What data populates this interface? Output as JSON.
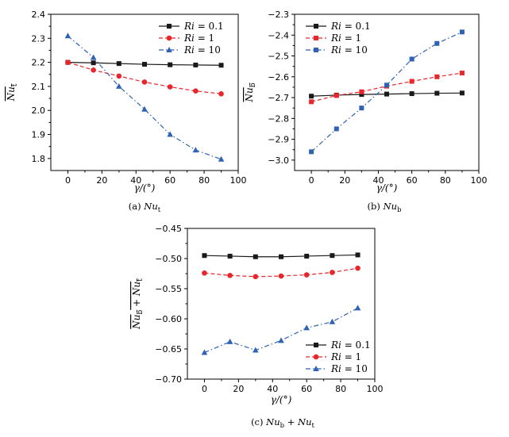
{
  "colors": {
    "black": "#1a1a1a",
    "red": "#e8262b",
    "blue": "#2f62b5"
  },
  "chart_data": [
    {
      "type": "line",
      "caption": "(a) Nu_t",
      "caption_base": "Nu",
      "caption_sub": "t",
      "caption_prefix": "(a) ",
      "xlabel": "γ/(°)",
      "ylabel": "Nu_t (overline)",
      "xlim": [
        -10,
        100
      ],
      "ylim": [
        1.75,
        2.4
      ],
      "xticks": [
        0,
        20,
        40,
        60,
        80,
        100
      ],
      "yticks": [
        1.8,
        1.9,
        2.0,
        2.1,
        2.2,
        2.3,
        2.4
      ],
      "x": [
        0,
        15,
        30,
        45,
        60,
        75,
        90
      ],
      "legend_position": "top-right",
      "series": [
        {
          "name": "Ri = 0.1",
          "color": "#1a1a1a",
          "marker": "square",
          "dash": "solid",
          "values": [
            2.2,
            2.198,
            2.195,
            2.192,
            2.19,
            2.189,
            2.188
          ]
        },
        {
          "name": "Ri = 1",
          "color": "#e8262b",
          "marker": "circle",
          "dash": "dashed",
          "values": [
            2.2,
            2.168,
            2.143,
            2.118,
            2.098,
            2.081,
            2.069
          ]
        },
        {
          "name": "Ri = 10",
          "color": "#2f62b5",
          "marker": "triangle",
          "dash": "dashdot",
          "values": [
            2.31,
            2.22,
            2.1,
            2.005,
            1.9,
            1.835,
            1.797
          ]
        }
      ]
    },
    {
      "type": "line",
      "caption": "(b) Nu_b",
      "caption_base": "Nu",
      "caption_sub": "b",
      "caption_prefix": "(b) ",
      "xlabel": "γ/(°)",
      "ylabel": "Nu_b (overline)",
      "xlim": [
        -10,
        100
      ],
      "ylim": [
        -3.05,
        -2.3
      ],
      "xticks": [
        0,
        20,
        40,
        60,
        80,
        100
      ],
      "yticks": [
        -3.0,
        -2.9,
        -2.8,
        -2.7,
        -2.6,
        -2.5,
        -2.4,
        -2.3
      ],
      "x": [
        0,
        15,
        30,
        45,
        60,
        75,
        90
      ],
      "legend_position": "top-right",
      "series": [
        {
          "name": "Ri = 0.1",
          "color": "#1a1a1a",
          "marker": "square",
          "dash": "solid",
          "values": [
            -2.693,
            -2.688,
            -2.685,
            -2.683,
            -2.681,
            -2.679,
            -2.678
          ]
        },
        {
          "name": "Ri = 1",
          "color": "#e8262b",
          "marker": "square",
          "dash": "dashed",
          "values": [
            -2.72,
            -2.69,
            -2.672,
            -2.645,
            -2.622,
            -2.6,
            -2.582
          ]
        },
        {
          "name": "Ri = 10",
          "color": "#2f62b5",
          "marker": "square",
          "dash": "dashdot",
          "values": [
            -2.96,
            -2.85,
            -2.75,
            -2.64,
            -2.515,
            -2.44,
            -2.385
          ]
        }
      ]
    },
    {
      "type": "line",
      "caption": "(c) Nu_b + Nu_t",
      "caption_base": "Nu",
      "caption_sub": "b",
      "caption_prefix": "(c) ",
      "caption_plus": " + ",
      "caption_sub2": "t",
      "xlabel": "γ/(°)",
      "ylabel": "Nu_b + Nu_t (overline)",
      "xlim": [
        -10,
        100
      ],
      "ylim": [
        -0.7,
        -0.45
      ],
      "xticks": [
        0,
        20,
        40,
        60,
        80,
        100
      ],
      "yticks": [
        -0.7,
        -0.65,
        -0.6,
        -0.55,
        -0.5,
        -0.45
      ],
      "ytick_labels": [
        "−0.70",
        "−0.65",
        "−0.60",
        "−0.55",
        "−0.50",
        "−0.45"
      ],
      "x": [
        0,
        15,
        30,
        45,
        60,
        75,
        90
      ],
      "legend_position": "bottom-right",
      "series": [
        {
          "name": "Ri = 0.1",
          "color": "#1a1a1a",
          "marker": "square",
          "dash": "solid",
          "values": [
            -0.495,
            -0.496,
            -0.497,
            -0.497,
            -0.496,
            -0.495,
            -0.494
          ]
        },
        {
          "name": "Ri = 1",
          "color": "#e8262b",
          "marker": "circle",
          "dash": "dashed",
          "values": [
            -0.524,
            -0.528,
            -0.53,
            -0.529,
            -0.527,
            -0.523,
            -0.516
          ]
        },
        {
          "name": "Ri = 10",
          "color": "#2f62b5",
          "marker": "triangle",
          "dash": "dashdot",
          "values": [
            -0.656,
            -0.638,
            -0.652,
            -0.636,
            -0.615,
            -0.605,
            -0.582
          ]
        }
      ]
    }
  ]
}
